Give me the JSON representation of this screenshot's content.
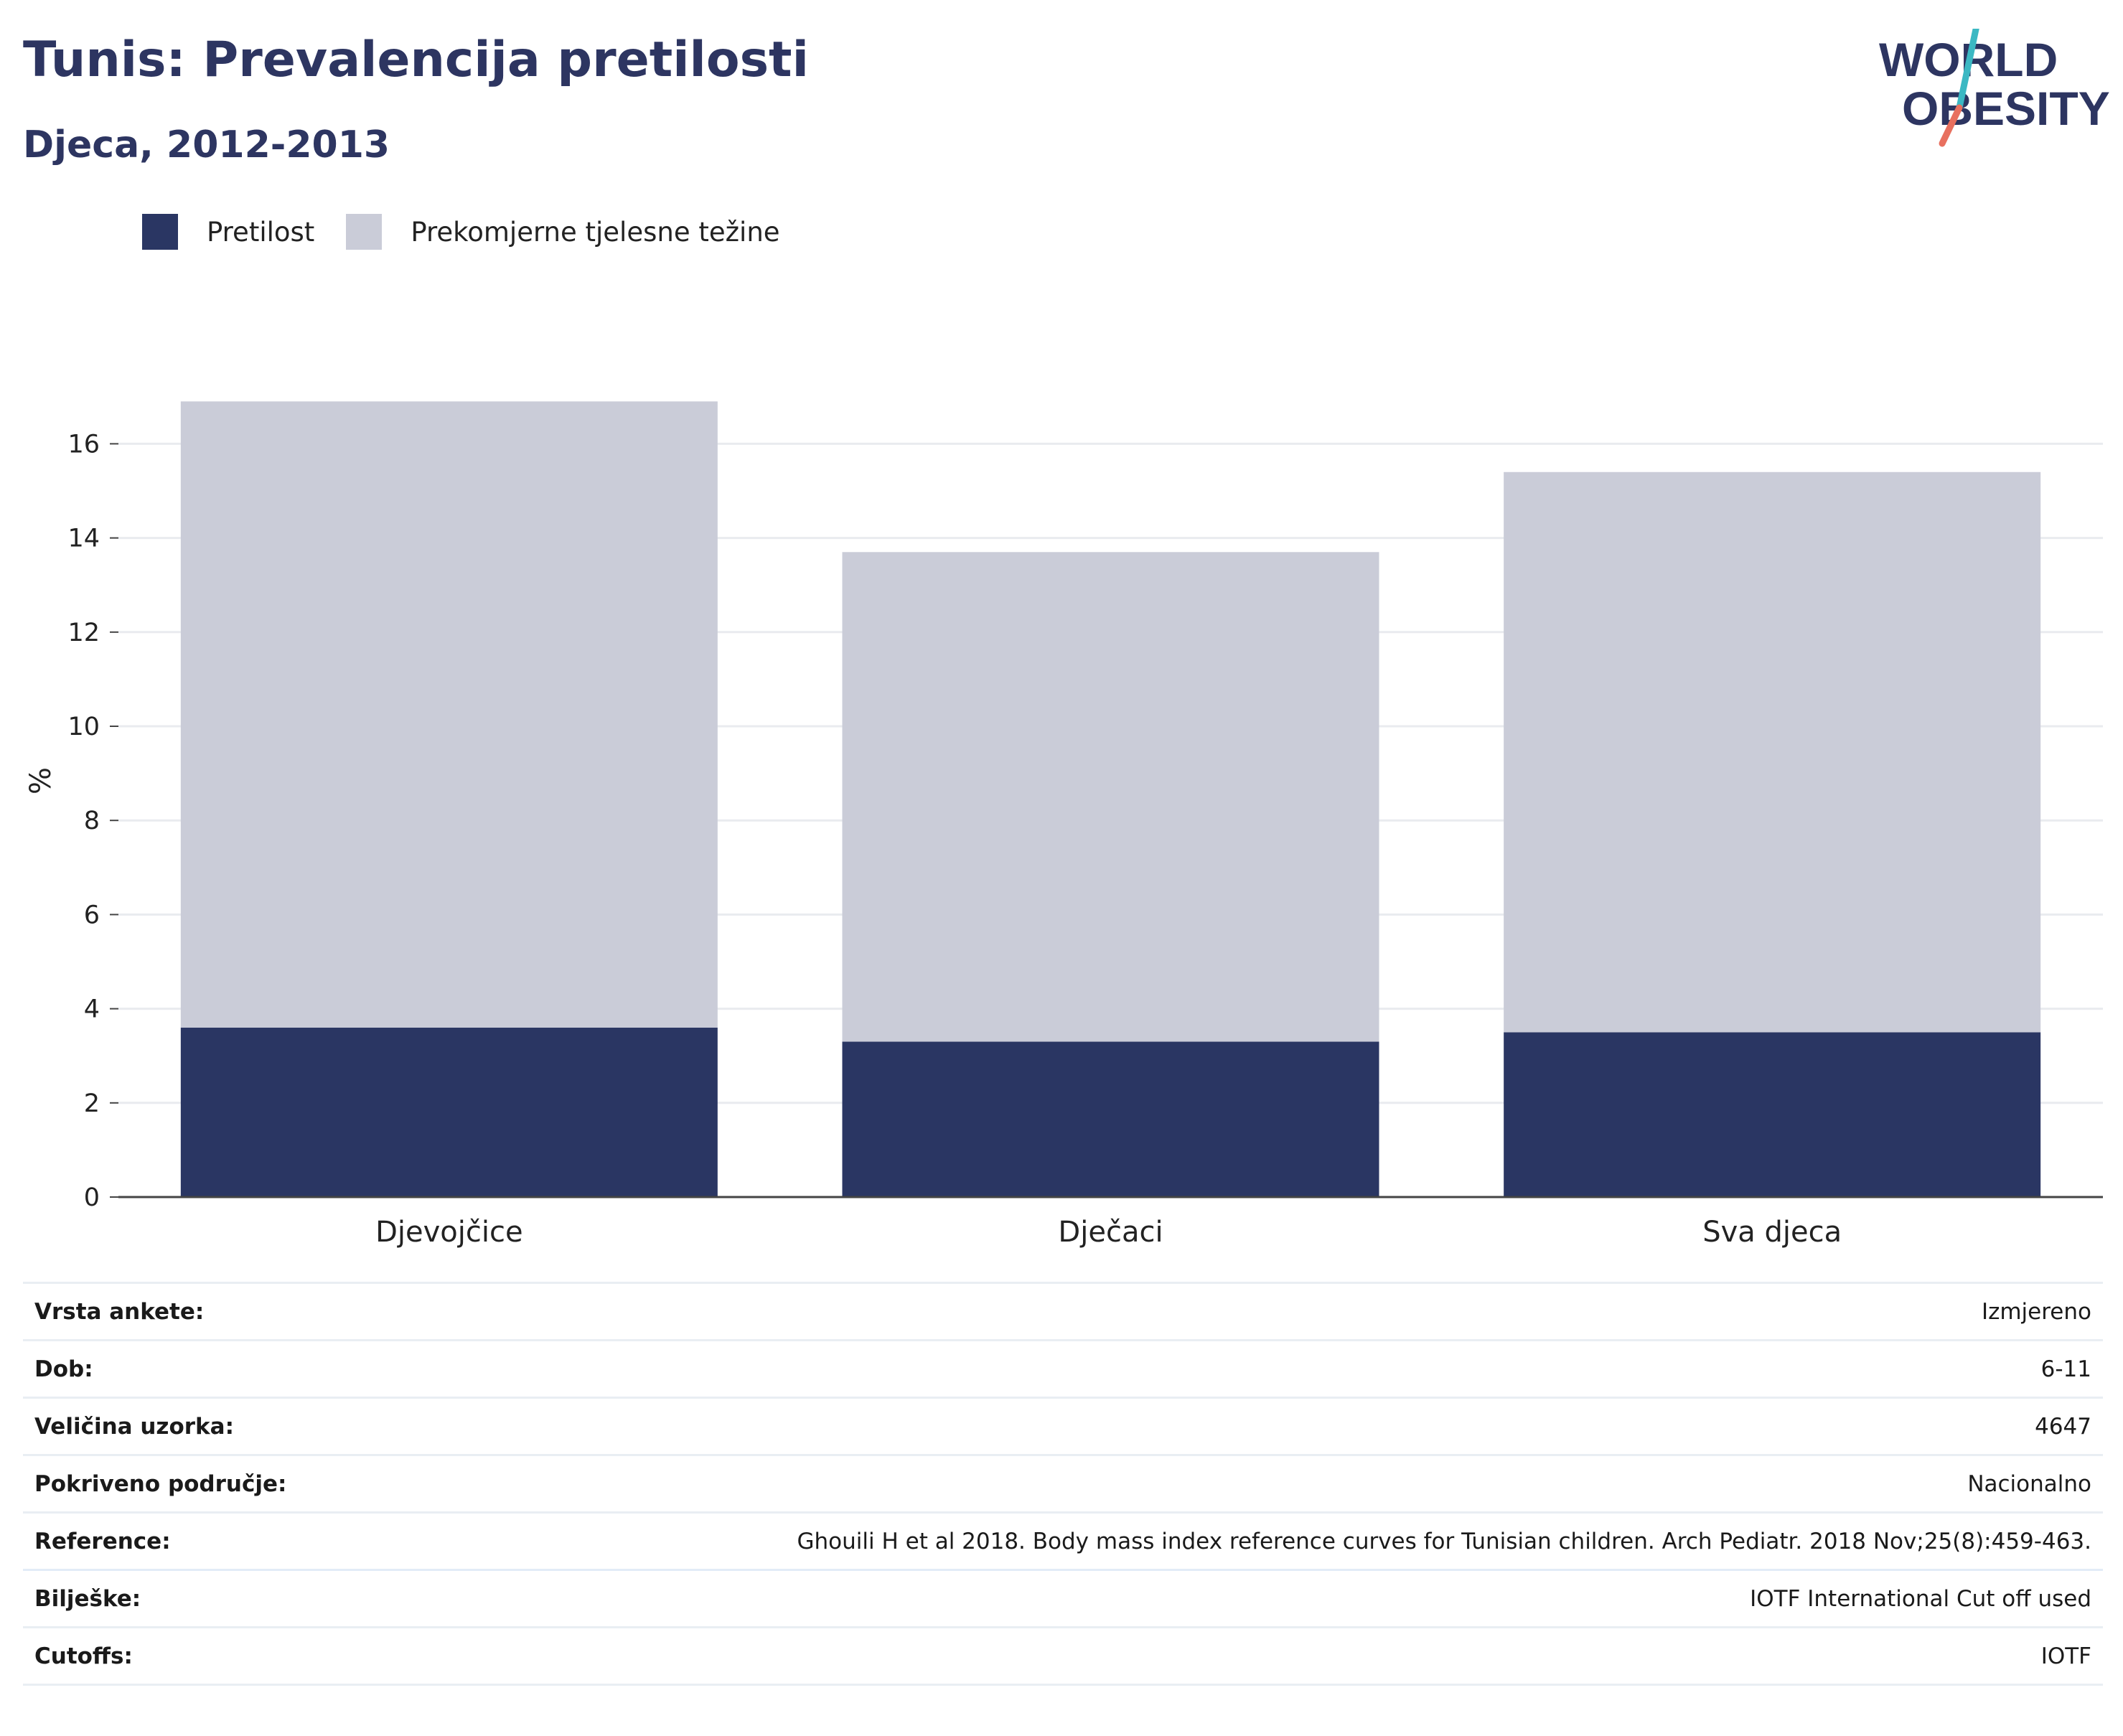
{
  "header": {
    "title": "Tunis: Prevalencija pretilosti",
    "subtitle": "Djeca, 2012-2013"
  },
  "logo": {
    "line1": "WORLD",
    "line2": "OBESITY",
    "text_color": "#2d3561",
    "slash_top_color": "#3bb8c3",
    "slash_bottom_color": "#e8705f"
  },
  "colors": {
    "obesity": "#2a3663",
    "overweight": "#caccd8",
    "grid": "#e9ebef",
    "axis": "#444444"
  },
  "chart_data": {
    "type": "bar",
    "stacked": true,
    "categories": [
      "Djevojčice",
      "Dječaci",
      "Sva djeca"
    ],
    "series": [
      {
        "name": "Pretilost",
        "values": [
          3.6,
          3.3,
          3.5
        ]
      },
      {
        "name": "Prekomjerne tjelesne težine",
        "values": [
          13.3,
          10.4,
          11.9
        ]
      }
    ],
    "ylabel": "%",
    "ylim": [
      0,
      17
    ],
    "yticks": [
      0,
      2,
      4,
      6,
      8,
      10,
      12,
      14,
      16
    ],
    "grid": true,
    "legend_position": "top-left"
  },
  "details": [
    {
      "label": "Vrsta ankete:",
      "value": "Izmjereno"
    },
    {
      "label": "Dob:",
      "value": "6-11"
    },
    {
      "label": "Veličina uzorka:",
      "value": "4647"
    },
    {
      "label": "Pokriveno područje:",
      "value": "Nacionalno"
    },
    {
      "label": "Reference:",
      "value": "Ghouili H et al 2018. Body mass index reference curves for Tunisian children. Arch Pediatr. 2018 Nov;25(8):459-463."
    },
    {
      "label": "Bilješke:",
      "value": "IOTF International Cut off used"
    },
    {
      "label": "Cutoffs:",
      "value": "IOTF"
    }
  ]
}
